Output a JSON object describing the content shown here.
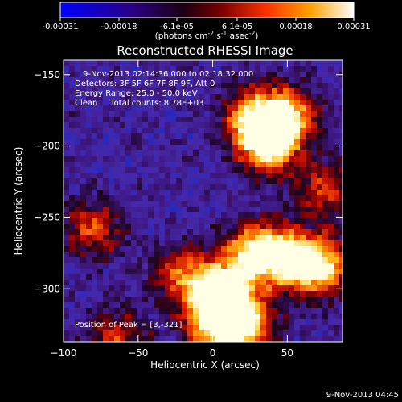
{
  "colorbar": {
    "ticks": [
      "-0.00031",
      "-0.00018",
      "-6.1e-05",
      "6.1e-05",
      "0.00018",
      "0.00031"
    ],
    "units_main": "(photons cm",
    "units_sup1": "-2",
    "units_mid": " s",
    "units_sup2": "-1",
    "units_mid2": " asec",
    "units_sup3": "-2",
    "units_end": ")"
  },
  "chart_data": {
    "type": "heatmap",
    "title": "Reconstructed RHESSI Image",
    "xlabel": "Heliocentric X (arcsec)",
    "ylabel": "Heliocentric Y (arcsec)",
    "xlim": [
      -100,
      87
    ],
    "ylim": [
      -337,
      -140
    ],
    "x_ticks": [
      "-100",
      "-50",
      "0",
      "50"
    ],
    "y_ticks": [
      "-150",
      "-200",
      "-250",
      "-300"
    ],
    "colormap_range": [
      -0.00031,
      0.00031
    ],
    "peak": {
      "x": 3,
      "y": -321
    },
    "info_lines": [
      "9-Nov-2013 02:14:36.000 to 02:18:32.000",
      "Detectors: 3F 5F 6F 7F 8F 9F, Att 0",
      "Energy Range: 25.0 - 50.0 keV",
      "Clean     Total counts: 8.78E+03"
    ],
    "peak_label": "Position of Peak = [3,-321]",
    "bright_sources": [
      {
        "x": 37,
        "y": -199,
        "level": 0.95
      },
      {
        "x": 28,
        "y": -180,
        "level": 0.75
      },
      {
        "x": 50,
        "y": -178,
        "level": 0.7
      },
      {
        "x": 30,
        "y": -275,
        "level": 1.0
      },
      {
        "x": 55,
        "y": -280,
        "level": 0.85
      },
      {
        "x": 5,
        "y": -300,
        "level": 0.85
      },
      {
        "x": 3,
        "y": -321,
        "level": 1.0
      },
      {
        "x": 20,
        "y": -325,
        "level": 0.9
      },
      {
        "x": 75,
        "y": -285,
        "level": 0.7
      },
      {
        "x": -20,
        "y": -290,
        "level": 0.55
      },
      {
        "x": -80,
        "y": -258,
        "level": 0.5
      },
      {
        "x": -65,
        "y": -335,
        "level": 0.45
      },
      {
        "x": 75,
        "y": -230,
        "level": 0.5
      }
    ]
  },
  "footer": {
    "timestamp": "9-Nov-2013 04:45"
  }
}
